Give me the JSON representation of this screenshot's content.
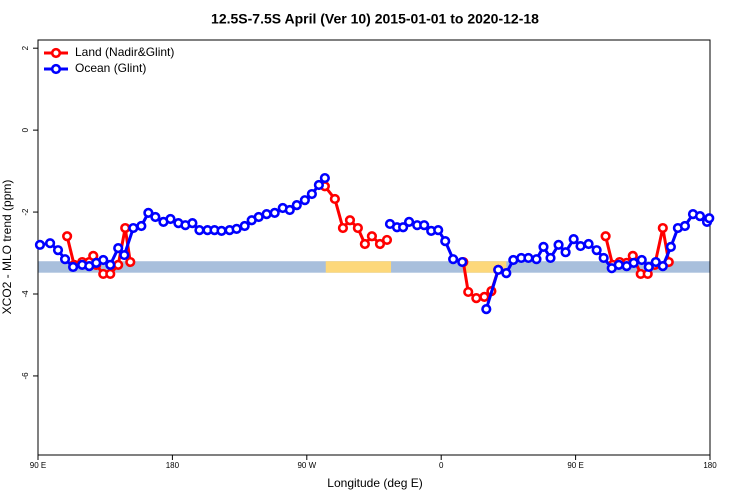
{
  "chart_data": {
    "type": "line",
    "title": "12.5S-7.5S April (Ver 10)   2015-01-01 to 2020-12-18",
    "x_label": "Longitude (deg E)",
    "y_label": "XCO2 - MLO trend (ppm)",
    "xlim": [
      90,
      540
    ],
    "ylim": [
      -7.93,
      2.2
    ],
    "xticks": [
      {
        "value": 90,
        "label": "90 E"
      },
      180,
      {
        "value": 270,
        "label": "90 W"
      },
      {
        "value": 360,
        "label": "0"
      },
      {
        "value": 450,
        "label": "90 E"
      },
      {
        "value": 540,
        "label": "180"
      }
    ],
    "yticks": [
      2,
      0,
      -2,
      -4,
      -6
    ],
    "legend": "top-left",
    "band": {
      "range": [
        -3.48,
        -3.2
      ],
      "color": "#a8bfdc"
    },
    "highlights": {
      "color": "#fdd87a",
      "ranges": [
        [
          282.7,
          326.4
        ],
        [
          374.8,
          403.6
        ]
      ]
    },
    "series": [
      {
        "name": "Land (Nadir&Glint)",
        "color": "#ff0000",
        "x": [
          109.5,
          114.2,
          119.6,
          124.3,
          127.0,
          129.0,
          133.7,
          138.4,
          143.7,
          148.4,
          151.8,
          null,
          282.1,
          288.8,
          294.2,
          298.9,
          304.2,
          308.9,
          313.6,
          319.0,
          323.7,
          null,
          374.8,
          378.1,
          383.5,
          388.9,
          393.6,
          398.2,
          null,
          470.1,
          474.8,
          479.5,
          484.2,
          488.3,
          493.6,
          498.3,
          503.0,
          508.4,
          512.4
        ],
        "values": [
          -2.59,
          -3.29,
          -3.22,
          -3.22,
          -3.07,
          -3.29,
          -3.51,
          -3.51,
          -3.29,
          -2.39,
          -3.22,
          null,
          -1.37,
          -1.68,
          -2.39,
          -2.2,
          -2.39,
          -2.78,
          -2.59,
          -2.78,
          -2.68,
          null,
          -3.22,
          -3.95,
          -4.1,
          -4.07,
          -3.93,
          -3.41,
          null,
          -2.59,
          -3.29,
          -3.22,
          -3.24,
          -3.07,
          -3.51,
          -3.51,
          -3.29,
          -2.39,
          -3.22
        ]
      },
      {
        "name": "Ocean (Glint)",
        "color": "#0000ff",
        "x": [
          91.3,
          98.1,
          103.4,
          108.1,
          113.5,
          119.6,
          124.3,
          129.0,
          133.7,
          138.4,
          143.7,
          147.8,
          153.8,
          159.2,
          163.9,
          168.6,
          174.0,
          178.7,
          184.0,
          188.7,
          193.4,
          198.1,
          203.5,
          208.2,
          212.9,
          218.3,
          223.0,
          228.4,
          233.1,
          237.8,
          243.1,
          248.5,
          253.9,
          258.6,
          263.3,
          268.7,
          273.4,
          278.1,
          282.1,
          null,
          325.7,
          330.4,
          334.5,
          338.5,
          343.9,
          348.6,
          353.3,
          358.0,
          362.7,
          368.0,
          374.1,
          null,
          390.2,
          398.2,
          403.6,
          408.3,
          413.6,
          418.4,
          423.8,
          428.5,
          433.2,
          438.6,
          443.3,
          448.7,
          453.3,
          458.7,
          464.1,
          468.8,
          474.2,
          478.9,
          484.2,
          488.9,
          494.3,
          499.0,
          503.7,
          508.4,
          513.8,
          518.5,
          523.2,
          528.6,
          533.3,
          538.0,
          539.5
        ],
        "values": [
          -2.8,
          -2.76,
          -2.93,
          -3.15,
          -3.34,
          -3.29,
          -3.32,
          -3.24,
          -3.17,
          -3.29,
          -2.88,
          -3.05,
          -2.39,
          -2.34,
          -2.02,
          -2.12,
          -2.24,
          -2.17,
          -2.27,
          -2.32,
          -2.27,
          -2.44,
          -2.44,
          -2.44,
          -2.46,
          -2.44,
          -2.41,
          -2.34,
          -2.2,
          -2.12,
          -2.05,
          -2.02,
          -1.9,
          -1.95,
          -1.83,
          -1.71,
          -1.56,
          -1.34,
          -1.17,
          null,
          -2.29,
          -2.37,
          -2.37,
          -2.24,
          -2.32,
          -2.32,
          -2.46,
          -2.44,
          -2.71,
          -3.15,
          -3.22,
          null,
          -4.37,
          -3.41,
          -3.49,
          -3.17,
          -3.12,
          -3.12,
          -3.15,
          -2.85,
          -3.12,
          -2.8,
          -2.98,
          -2.66,
          -2.83,
          -2.78,
          -2.93,
          -3.12,
          -3.37,
          -3.29,
          -3.32,
          -3.24,
          -3.17,
          -3.34,
          -3.22,
          -3.32,
          -2.85,
          -2.39,
          -2.34,
          -2.05,
          -2.1,
          -2.24,
          -2.15
        ]
      }
    ]
  }
}
